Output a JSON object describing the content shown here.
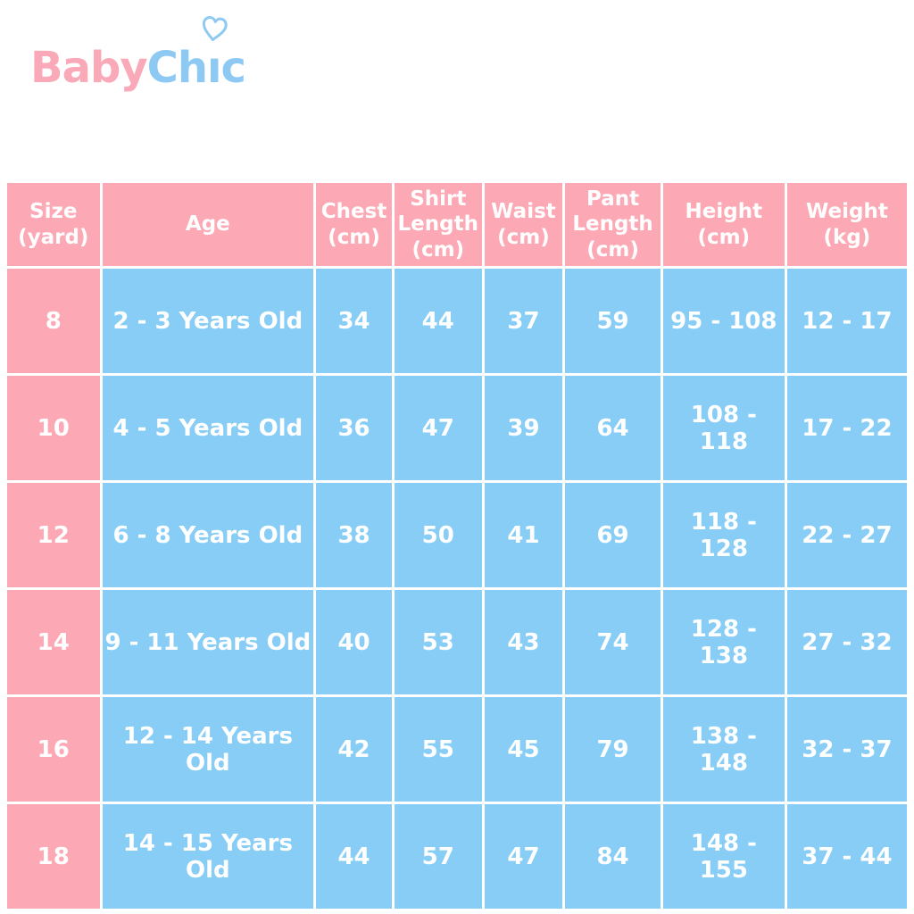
{
  "logo": {
    "baby": "Baby",
    "chic_prefix": "Ch",
    "chic_dotless_i": "ı",
    "chic_suffix": "c",
    "heart_icon": "heart-outline-icon"
  },
  "colors": {
    "logo_pink": "#f9a9b7",
    "logo_blue": "#8ec9f3",
    "header_pink": "#fca8b5",
    "cell_blue": "#87cdf6",
    "cell_text": "#ffffff",
    "background": "#ffffff"
  },
  "chart_data": {
    "type": "table",
    "columns": [
      "Size\n(yard)",
      "Age",
      "Chest\n(cm)",
      "Shirt\nLength\n(cm)",
      "Waist\n(cm)",
      "Pant\nLength\n(cm)",
      "Height\n(cm)",
      "Weight\n(kg)"
    ],
    "column_keys": [
      "size",
      "age",
      "chest",
      "shirt-length",
      "waist",
      "pant-length",
      "height",
      "weight"
    ],
    "rows": [
      [
        "8",
        "2 - 3 Years Old",
        "34",
        "44",
        "37",
        "59",
        "95 - 108",
        "12 - 17"
      ],
      [
        "10",
        "4 - 5 Years Old",
        "36",
        "47",
        "39",
        "64",
        "108 - 118",
        "17 - 22"
      ],
      [
        "12",
        "6 - 8 Years Old",
        "38",
        "50",
        "41",
        "69",
        "118 - 128",
        "22 - 27"
      ],
      [
        "14",
        "9 - 11 Years Old",
        "40",
        "53",
        "43",
        "74",
        "128 - 138",
        "27 - 32"
      ],
      [
        "16",
        "12 - 14 Years Old",
        "42",
        "55",
        "45",
        "79",
        "138 - 148",
        "32 - 37"
      ],
      [
        "18",
        "14 - 15 Years Old",
        "44",
        "57",
        "47",
        "84",
        "148 - 155",
        "37 - 44"
      ]
    ]
  }
}
